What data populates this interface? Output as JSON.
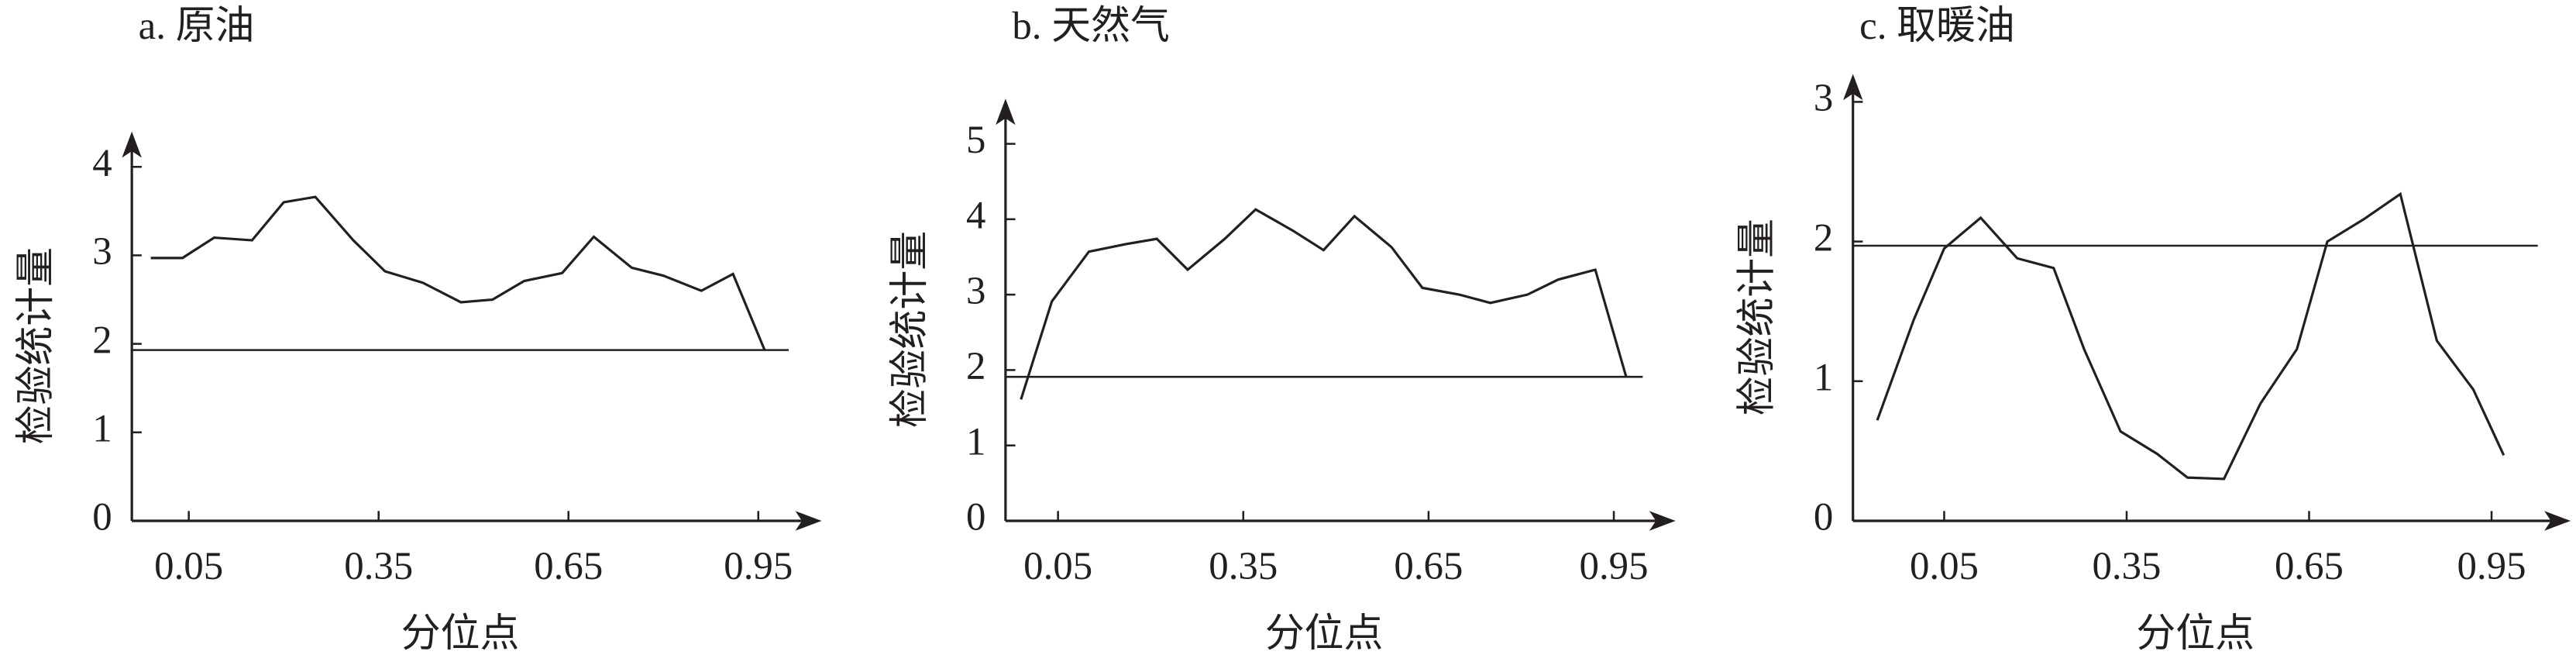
{
  "chart_data": [
    {
      "type": "line",
      "title": "a. 原油",
      "x_label": "分位点",
      "y_label": "检验统计量",
      "x": [
        -0.01,
        0.04,
        0.09,
        0.15,
        0.2,
        0.25,
        0.31,
        0.36,
        0.42,
        0.48,
        0.53,
        0.58,
        0.64,
        0.69,
        0.75,
        0.8,
        0.86,
        0.91,
        0.96
      ],
      "series": [
        {
          "color": "#231f20",
          "values": [
            2.97,
            2.97,
            3.2,
            3.17,
            3.6,
            3.66,
            3.17,
            2.82,
            2.69,
            2.47,
            2.5,
            2.71,
            2.8,
            3.21,
            2.86,
            2.77,
            2.6,
            2.79,
            1.93
          ]
        }
      ],
      "reference_line": 1.93,
      "xlim": [
        -0.04,
        1.05
      ],
      "ylim": [
        0,
        4.4
      ],
      "xticks": [
        0.05,
        0.35,
        0.65,
        0.95
      ],
      "yticks": [
        0,
        1,
        2,
        3,
        4
      ]
    },
    {
      "type": "line",
      "title": "b. 天然气",
      "x_label": "分位点",
      "y_label": "检验统计量",
      "x": [
        -0.01,
        0.04,
        0.1,
        0.16,
        0.21,
        0.26,
        0.32,
        0.37,
        0.43,
        0.48,
        0.53,
        0.59,
        0.64,
        0.7,
        0.75,
        0.81,
        0.86,
        0.92,
        0.97
      ],
      "series": [
        {
          "color": "#231f20",
          "values": [
            1.61,
            2.91,
            3.57,
            3.67,
            3.74,
            3.33,
            3.74,
            4.13,
            3.85,
            3.59,
            4.04,
            3.63,
            3.09,
            3.0,
            2.89,
            3.0,
            3.2,
            3.33,
            1.91
          ]
        }
      ],
      "reference_line": 1.91,
      "xlim": [
        -0.035,
        1.05
      ],
      "ylim": [
        0,
        5.6
      ],
      "xticks": [
        0.05,
        0.35,
        0.65,
        0.95
      ],
      "yticks": [
        0,
        1,
        2,
        3,
        4,
        5
      ]
    },
    {
      "type": "line",
      "title": "c. 取暖油",
      "x_label": "分位点",
      "y_label": "检验统计量",
      "x": [
        -0.06,
        0.0,
        0.05,
        0.11,
        0.17,
        0.23,
        0.28,
        0.34,
        0.4,
        0.45,
        0.51,
        0.57,
        0.63,
        0.68,
        0.74,
        0.8,
        0.86,
        0.92,
        0.97
      ],
      "series": [
        {
          "color": "#231f20",
          "values": [
            0.72,
            1.44,
            1.95,
            2.17,
            1.88,
            1.81,
            1.23,
            0.64,
            0.48,
            0.31,
            0.3,
            0.84,
            1.23,
            2.0,
            2.16,
            2.34,
            1.29,
            0.94,
            0.47
          ]
        }
      ],
      "reference_line": 1.97,
      "xlim": [
        -0.1,
        1.08
      ],
      "ylim": [
        0,
        3.2
      ],
      "xticks": [
        0.05,
        0.35,
        0.65,
        0.95
      ],
      "yticks": [
        0,
        1,
        2,
        3
      ]
    }
  ]
}
